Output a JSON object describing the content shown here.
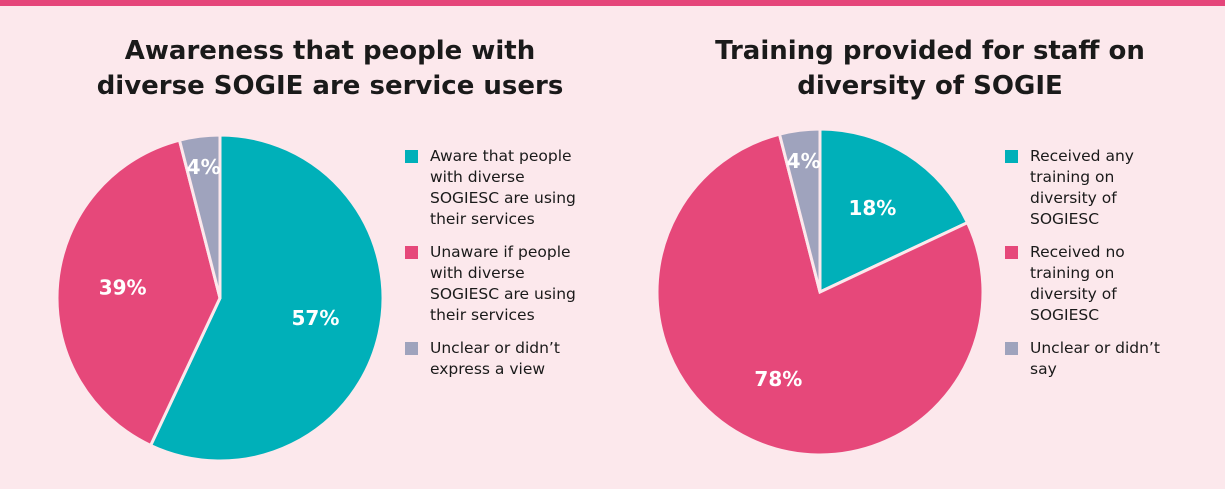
{
  "chart_data": [
    {
      "type": "pie",
      "title": "Awareness that people with diverse SOGIE are service users",
      "categories": [
        "Aware that people with diverse SOGIESC are using their services",
        "Unaware if people with diverse SOGIESC are using their services",
        "Unclear or didn’t express a view"
      ],
      "values": [
        57,
        39,
        4
      ],
      "value_labels": [
        "57%",
        "39%",
        "4%"
      ],
      "colors": [
        "#00b0b9",
        "#e6487a",
        "#9fa3bd"
      ]
    },
    {
      "type": "pie",
      "title": "Training provided for staff on diversity of SOGIE",
      "categories": [
        "Received any training on diversity of SOGIESC",
        "Received no training on diversity of SOGIESC",
        "Unclear or didn’t say"
      ],
      "values": [
        18,
        78,
        4
      ],
      "value_labels": [
        "18%",
        "78%",
        "4%"
      ],
      "colors": [
        "#00b0b9",
        "#e6487a",
        "#9fa3bd"
      ]
    }
  ]
}
